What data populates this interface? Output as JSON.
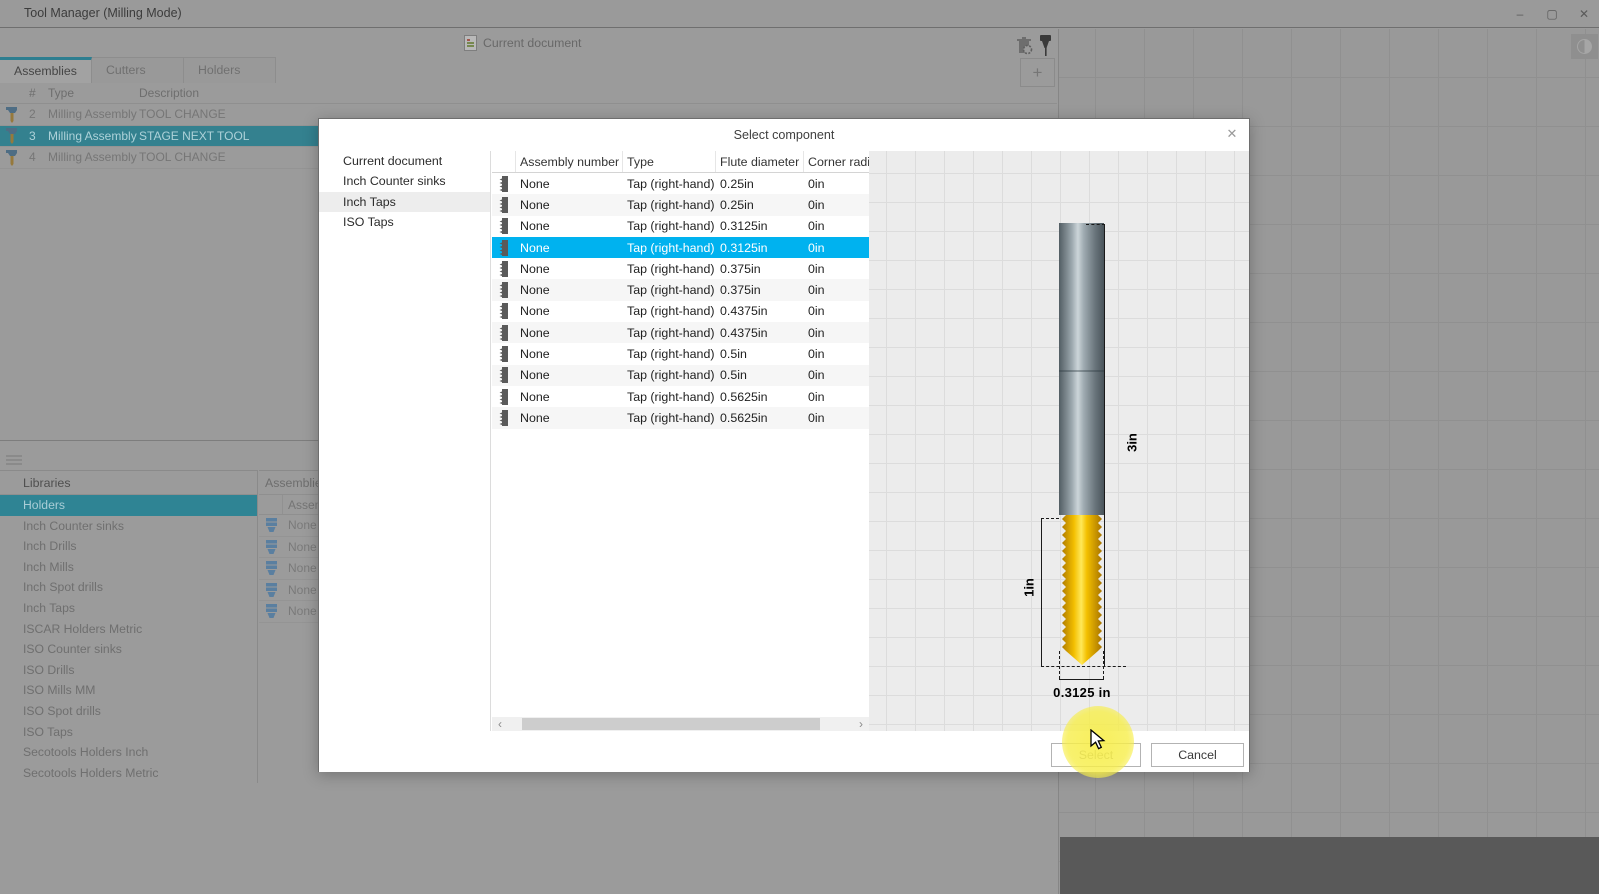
{
  "window": {
    "title": "Tool Manager (Milling Mode)",
    "controls": {
      "minimize": "–",
      "maximize": "▢",
      "close": "✕"
    }
  },
  "topbar": {
    "document_tab": "Current document",
    "add_button": "+"
  },
  "tabs": [
    {
      "label": "Assemblies",
      "selected": true
    },
    {
      "label": "Cutters"
    },
    {
      "label": "Holders"
    }
  ],
  "assembly_table": {
    "columns": {
      "num": "#",
      "type": "Type",
      "desc": "Description"
    },
    "rows": [
      {
        "num": "2",
        "type": "Milling Assembly",
        "desc": "TOOL CHANGE"
      },
      {
        "num": "3",
        "type": "Milling Assembly",
        "desc": "STAGE NEXT TOOL",
        "selected": true
      },
      {
        "num": "4",
        "type": "Milling Assembly",
        "desc": "TOOL CHANGE"
      }
    ]
  },
  "libraries": {
    "header": "Libraries",
    "items": [
      {
        "label": "Holders",
        "selected": true
      },
      {
        "label": "Inch Counter sinks"
      },
      {
        "label": "Inch Drills"
      },
      {
        "label": "Inch Mills"
      },
      {
        "label": "Inch Spot drills"
      },
      {
        "label": "Inch Taps"
      },
      {
        "label": "ISCAR Holders Metric"
      },
      {
        "label": "ISO Counter sinks"
      },
      {
        "label": "ISO Drills"
      },
      {
        "label": "ISO Mills MM"
      },
      {
        "label": "ISO Spot drills"
      },
      {
        "label": "ISO Taps"
      },
      {
        "label": "Secotools Holders Inch"
      },
      {
        "label": "Secotools Holders Metric"
      }
    ]
  },
  "assemblies_panel": {
    "header": "Assemblies",
    "column_header": "Assem",
    "rows": [
      {
        "name": "None"
      },
      {
        "name": "None"
      },
      {
        "name": "None"
      },
      {
        "name": "None"
      },
      {
        "name": "None"
      }
    ]
  },
  "dialog": {
    "title": "Select component",
    "close_glyph": "✕",
    "categories": [
      {
        "label": "Current document"
      },
      {
        "label": "Inch Counter sinks"
      },
      {
        "label": "Inch Taps",
        "selected": true
      },
      {
        "label": "ISO Taps"
      }
    ],
    "table": {
      "columns": {
        "assembly": "Assembly number",
        "type": "Type",
        "flute": "Flute diameter",
        "corner": "Corner radi"
      },
      "rows": [
        {
          "assembly": "None",
          "type": "Tap (right-hand)",
          "flute": "0.25in",
          "corner": "0in"
        },
        {
          "assembly": "None",
          "type": "Tap (right-hand)",
          "flute": "0.25in",
          "corner": "0in"
        },
        {
          "assembly": "None",
          "type": "Tap (right-hand)",
          "flute": "0.3125in",
          "corner": "0in"
        },
        {
          "assembly": "None",
          "type": "Tap (right-hand)",
          "flute": "0.3125in",
          "corner": "0in",
          "selected": true
        },
        {
          "assembly": "None",
          "type": "Tap (right-hand)",
          "flute": "0.375in",
          "corner": "0in"
        },
        {
          "assembly": "None",
          "type": "Tap (right-hand)",
          "flute": "0.375in",
          "corner": "0in"
        },
        {
          "assembly": "None",
          "type": "Tap (right-hand)",
          "flute": "0.4375in",
          "corner": "0in"
        },
        {
          "assembly": "None",
          "type": "Tap (right-hand)",
          "flute": "0.4375in",
          "corner": "0in"
        },
        {
          "assembly": "None",
          "type": "Tap (right-hand)",
          "flute": "0.5in",
          "corner": "0in"
        },
        {
          "assembly": "None",
          "type": "Tap (right-hand)",
          "flute": "0.5in",
          "corner": "0in"
        },
        {
          "assembly": "None",
          "type": "Tap (right-hand)",
          "flute": "0.5625in",
          "corner": "0in"
        },
        {
          "assembly": "None",
          "type": "Tap (right-hand)",
          "flute": "0.5625in",
          "corner": "0in"
        }
      ]
    },
    "scrollbar": {
      "left": "‹",
      "right": "›"
    },
    "preview": {
      "dim_overall": "3in",
      "dim_flute": "1in",
      "dim_diameter": "0.3125 in"
    },
    "buttons": {
      "select": "Select",
      "cancel": "Cancel"
    }
  },
  "colors": {
    "selection_cyan": "#00b2ef",
    "selection_teal": "#34818f",
    "highlight_yellow": "#f7ee4a"
  }
}
